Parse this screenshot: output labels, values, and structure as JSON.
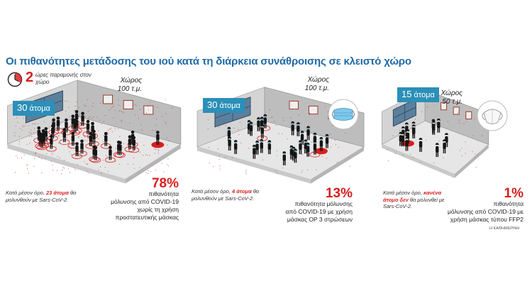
{
  "title": "Οι πιθανότητες μετάδοσης του ιού κατά τη διάρκεια συνάθροισης σε κλειστό χώρο",
  "clock": {
    "number": "2",
    "text": "ώρες παραμονής στον χώρο",
    "icon": "clock-icon"
  },
  "colors": {
    "accent_blue": "#1f6aa6",
    "badge_blue": "#2c8fb8",
    "alert_red": "#d91e1e"
  },
  "scenarios": [
    {
      "people_number": "30",
      "people_unit": "άτομα",
      "space_label": "Χώρος",
      "space_size": "100 τ.μ.",
      "mask": "none",
      "note_before": "Κατά μέσον όρο,",
      "note_highlight": "23 άτομα",
      "note_after": "θα μολυνθούν με Sars-CoV-2.",
      "percent": "78%",
      "percent_text": [
        "πιθανότητα",
        "μόλυνσης από COVID-19",
        "χωρίς τη χρήση",
        "προστατευτικής μάσκας"
      ],
      "infected_fraction": 0.78
    },
    {
      "people_number": "30",
      "people_unit": "άτομα",
      "space_label": "Χώρος",
      "space_size": "100 τ.μ.",
      "mask": "surgical-mask-icon",
      "note_before": "Κατά μέσον όρο,",
      "note_highlight": "4 άτομα",
      "note_after": "θα μολυνθούν με Sars-CoV-2.",
      "percent": "13%",
      "percent_text": [
        "πιθανότητα μόλυνσης",
        "από COVID-19 με χρήση",
        "μάσκας ΟΡ 3 στρώσεων"
      ],
      "infected_fraction": 0.13
    },
    {
      "people_number": "15",
      "people_unit": "άτομα",
      "space_label": "Χώρος",
      "space_size": "50 τ.μ.",
      "mask": "ffp2-mask-icon",
      "note_before": "Κατά μέσον όρο,",
      "note_highlight": "κανένα άτομο δεν",
      "note_after": "θα μολυνθεί με Sars-CoV-2.",
      "percent": "1%",
      "percent_text": [
        "πιθανότητα",
        "μόλυνσης από COVID-19 με",
        "χρήση μάσκας τύπου FFP2"
      ],
      "infected_fraction": 0.01
    }
  ],
  "credit": "Η ΚΑΘΗΜΕΡΙΝΗ"
}
